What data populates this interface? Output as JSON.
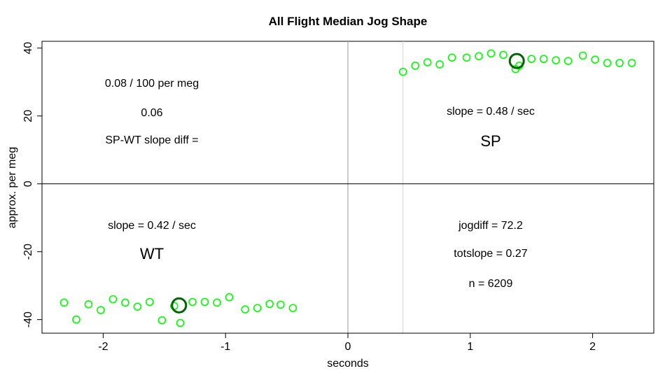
{
  "chart_data": {
    "type": "scatter",
    "title": "All Flight Median Jog Shape",
    "xlabel": "seconds",
    "ylabel": "approx. per meg",
    "xlim": [
      -2.5,
      2.5
    ],
    "ylim": [
      -44,
      42
    ],
    "x_ticks": [
      -2,
      -1,
      0,
      1,
      2
    ],
    "y_ticks": [
      -40,
      -20,
      0,
      20,
      40
    ],
    "x_tick_labels": [
      "-2",
      "-1",
      "0",
      "1",
      "2"
    ],
    "y_tick_labels": [
      "-40",
      "-20",
      "0",
      "20",
      "40"
    ],
    "reference_lines": {
      "h": 0,
      "v": 0,
      "v_light": 0.45
    },
    "point_color": "#00ff00",
    "highlight_color": "#006400",
    "series": [
      {
        "values": [
          {
            "x": -2.32,
            "y": -35
          },
          {
            "x": -2.22,
            "y": -40
          },
          {
            "x": -2.12,
            "y": -35.5
          },
          {
            "x": -2.02,
            "y": -37.2
          },
          {
            "x": -1.92,
            "y": -34
          },
          {
            "x": -1.82,
            "y": -35
          },
          {
            "x": -1.72,
            "y": -36.2
          },
          {
            "x": -1.62,
            "y": -34.8
          },
          {
            "x": -1.52,
            "y": -40.2
          },
          {
            "x": -1.42,
            "y": -36
          },
          {
            "x": -1.37,
            "y": -41
          },
          {
            "x": -1.27,
            "y": -34.8
          },
          {
            "x": -1.17,
            "y": -34.8
          },
          {
            "x": -1.07,
            "y": -35
          },
          {
            "x": -0.97,
            "y": -33.4
          },
          {
            "x": -0.84,
            "y": -37
          },
          {
            "x": -0.74,
            "y": -36.6
          },
          {
            "x": -0.64,
            "y": -35.4
          },
          {
            "x": -0.55,
            "y": -35.6
          },
          {
            "x": -0.45,
            "y": -36.6
          },
          {
            "x": 0.45,
            "y": 33
          },
          {
            "x": 0.55,
            "y": 34.8
          },
          {
            "x": 0.65,
            "y": 35.8
          },
          {
            "x": 0.75,
            "y": 35.2
          },
          {
            "x": 0.85,
            "y": 37.2
          },
          {
            "x": 0.97,
            "y": 37.2
          },
          {
            "x": 1.07,
            "y": 37.6
          },
          {
            "x": 1.17,
            "y": 38.4
          },
          {
            "x": 1.27,
            "y": 38
          },
          {
            "x": 1.37,
            "y": 33.8
          },
          {
            "x": 1.4,
            "y": 34.8
          },
          {
            "x": 1.5,
            "y": 36.8
          },
          {
            "x": 1.6,
            "y": 36.8
          },
          {
            "x": 1.7,
            "y": 36.4
          },
          {
            "x": 1.8,
            "y": 36.2
          },
          {
            "x": 1.92,
            "y": 37.8
          },
          {
            "x": 2.02,
            "y": 36.6
          },
          {
            "x": 2.12,
            "y": 35.6
          },
          {
            "x": 2.22,
            "y": 35.6
          },
          {
            "x": 2.32,
            "y": 35.6
          }
        ]
      }
    ],
    "highlight_points": [
      {
        "x": -1.38,
        "y": -35.8
      },
      {
        "x": 1.38,
        "y": 36.2
      }
    ]
  },
  "annotations": {
    "ratio": "0.08 / 100 per meg",
    "diff_value": "0.06",
    "diff_label": "SP-WT slope diff =",
    "sp_slope": "slope = 0.48 / sec",
    "sp_label": "SP",
    "wt_slope": "slope = 0.42 / sec",
    "wt_label": "WT",
    "jogdiff": "jogdiff = 72.2",
    "totslope": "totslope = 0.27",
    "n": "n = 6209"
  }
}
